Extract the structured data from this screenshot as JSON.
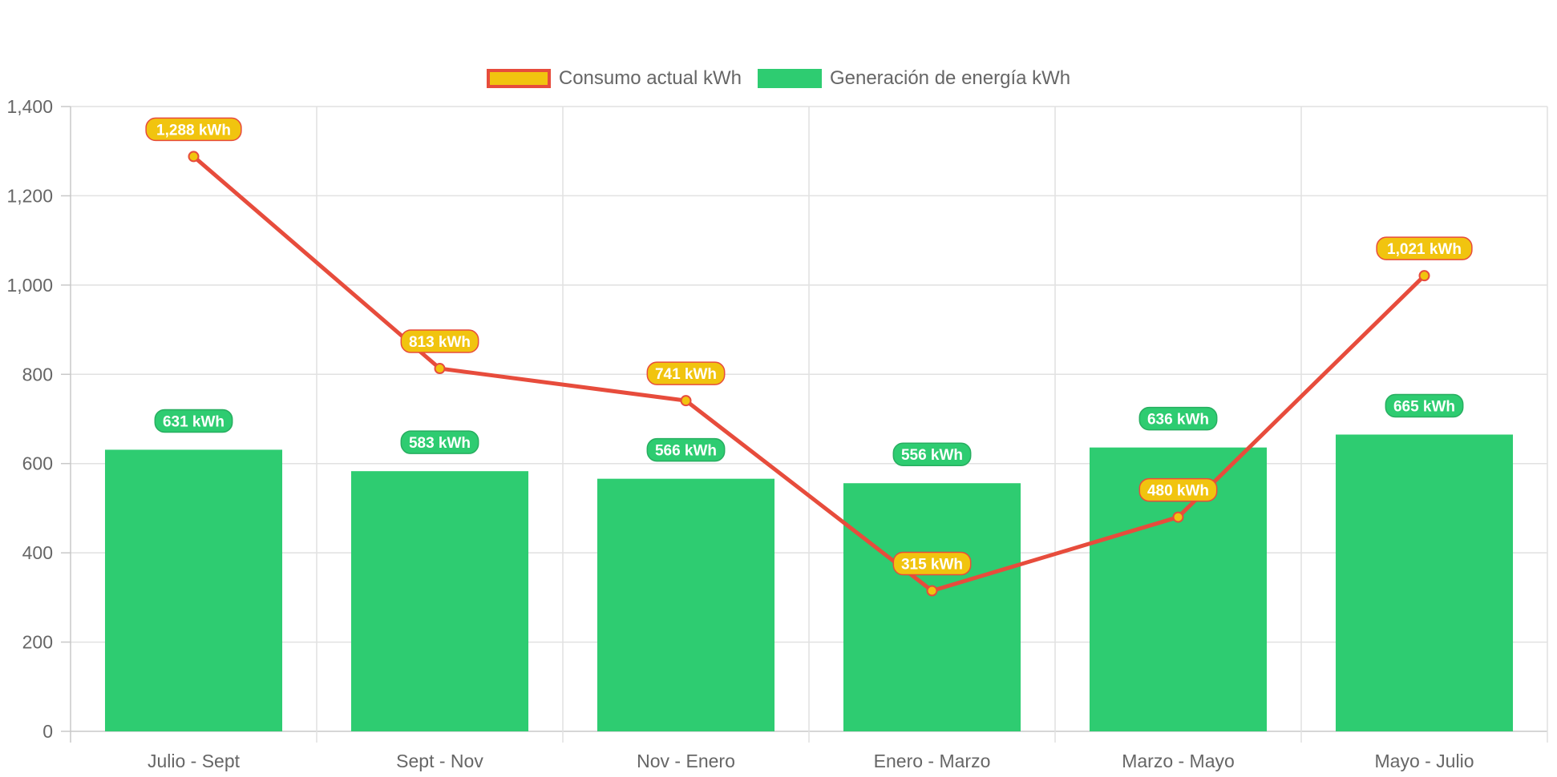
{
  "chart_data": {
    "type": "bar",
    "categories": [
      "Julio - Sept",
      "Sept - Nov",
      "Nov - Enero",
      "Enero - Marzo",
      "Marzo - Mayo",
      "Mayo - Julio"
    ],
    "series": [
      {
        "name": "Consumo actual kWh",
        "type": "line",
        "values": [
          1288,
          813,
          741,
          315,
          480,
          1021
        ],
        "labels": [
          "1,288 kWh",
          "813 kWh",
          "741 kWh",
          "315 kWh",
          "480 kWh",
          "1,021 kWh"
        ],
        "line_color": "#e74c3c",
        "fill_color": "#f1c40f"
      },
      {
        "name": "Generación de energía kWh",
        "type": "bar",
        "values": [
          631,
          583,
          566,
          556,
          636,
          665
        ],
        "labels": [
          "631 kWh",
          "583 kWh",
          "566 kWh",
          "556 kWh",
          "636 kWh",
          "665 kWh"
        ],
        "color": "#2ecc71"
      }
    ],
    "ylim": [
      0,
      1400
    ],
    "yticks": [
      "0",
      "200",
      "400",
      "600",
      "800",
      "1,000",
      "1,200",
      "1,400"
    ],
    "grid": true,
    "legend_position": "top"
  }
}
